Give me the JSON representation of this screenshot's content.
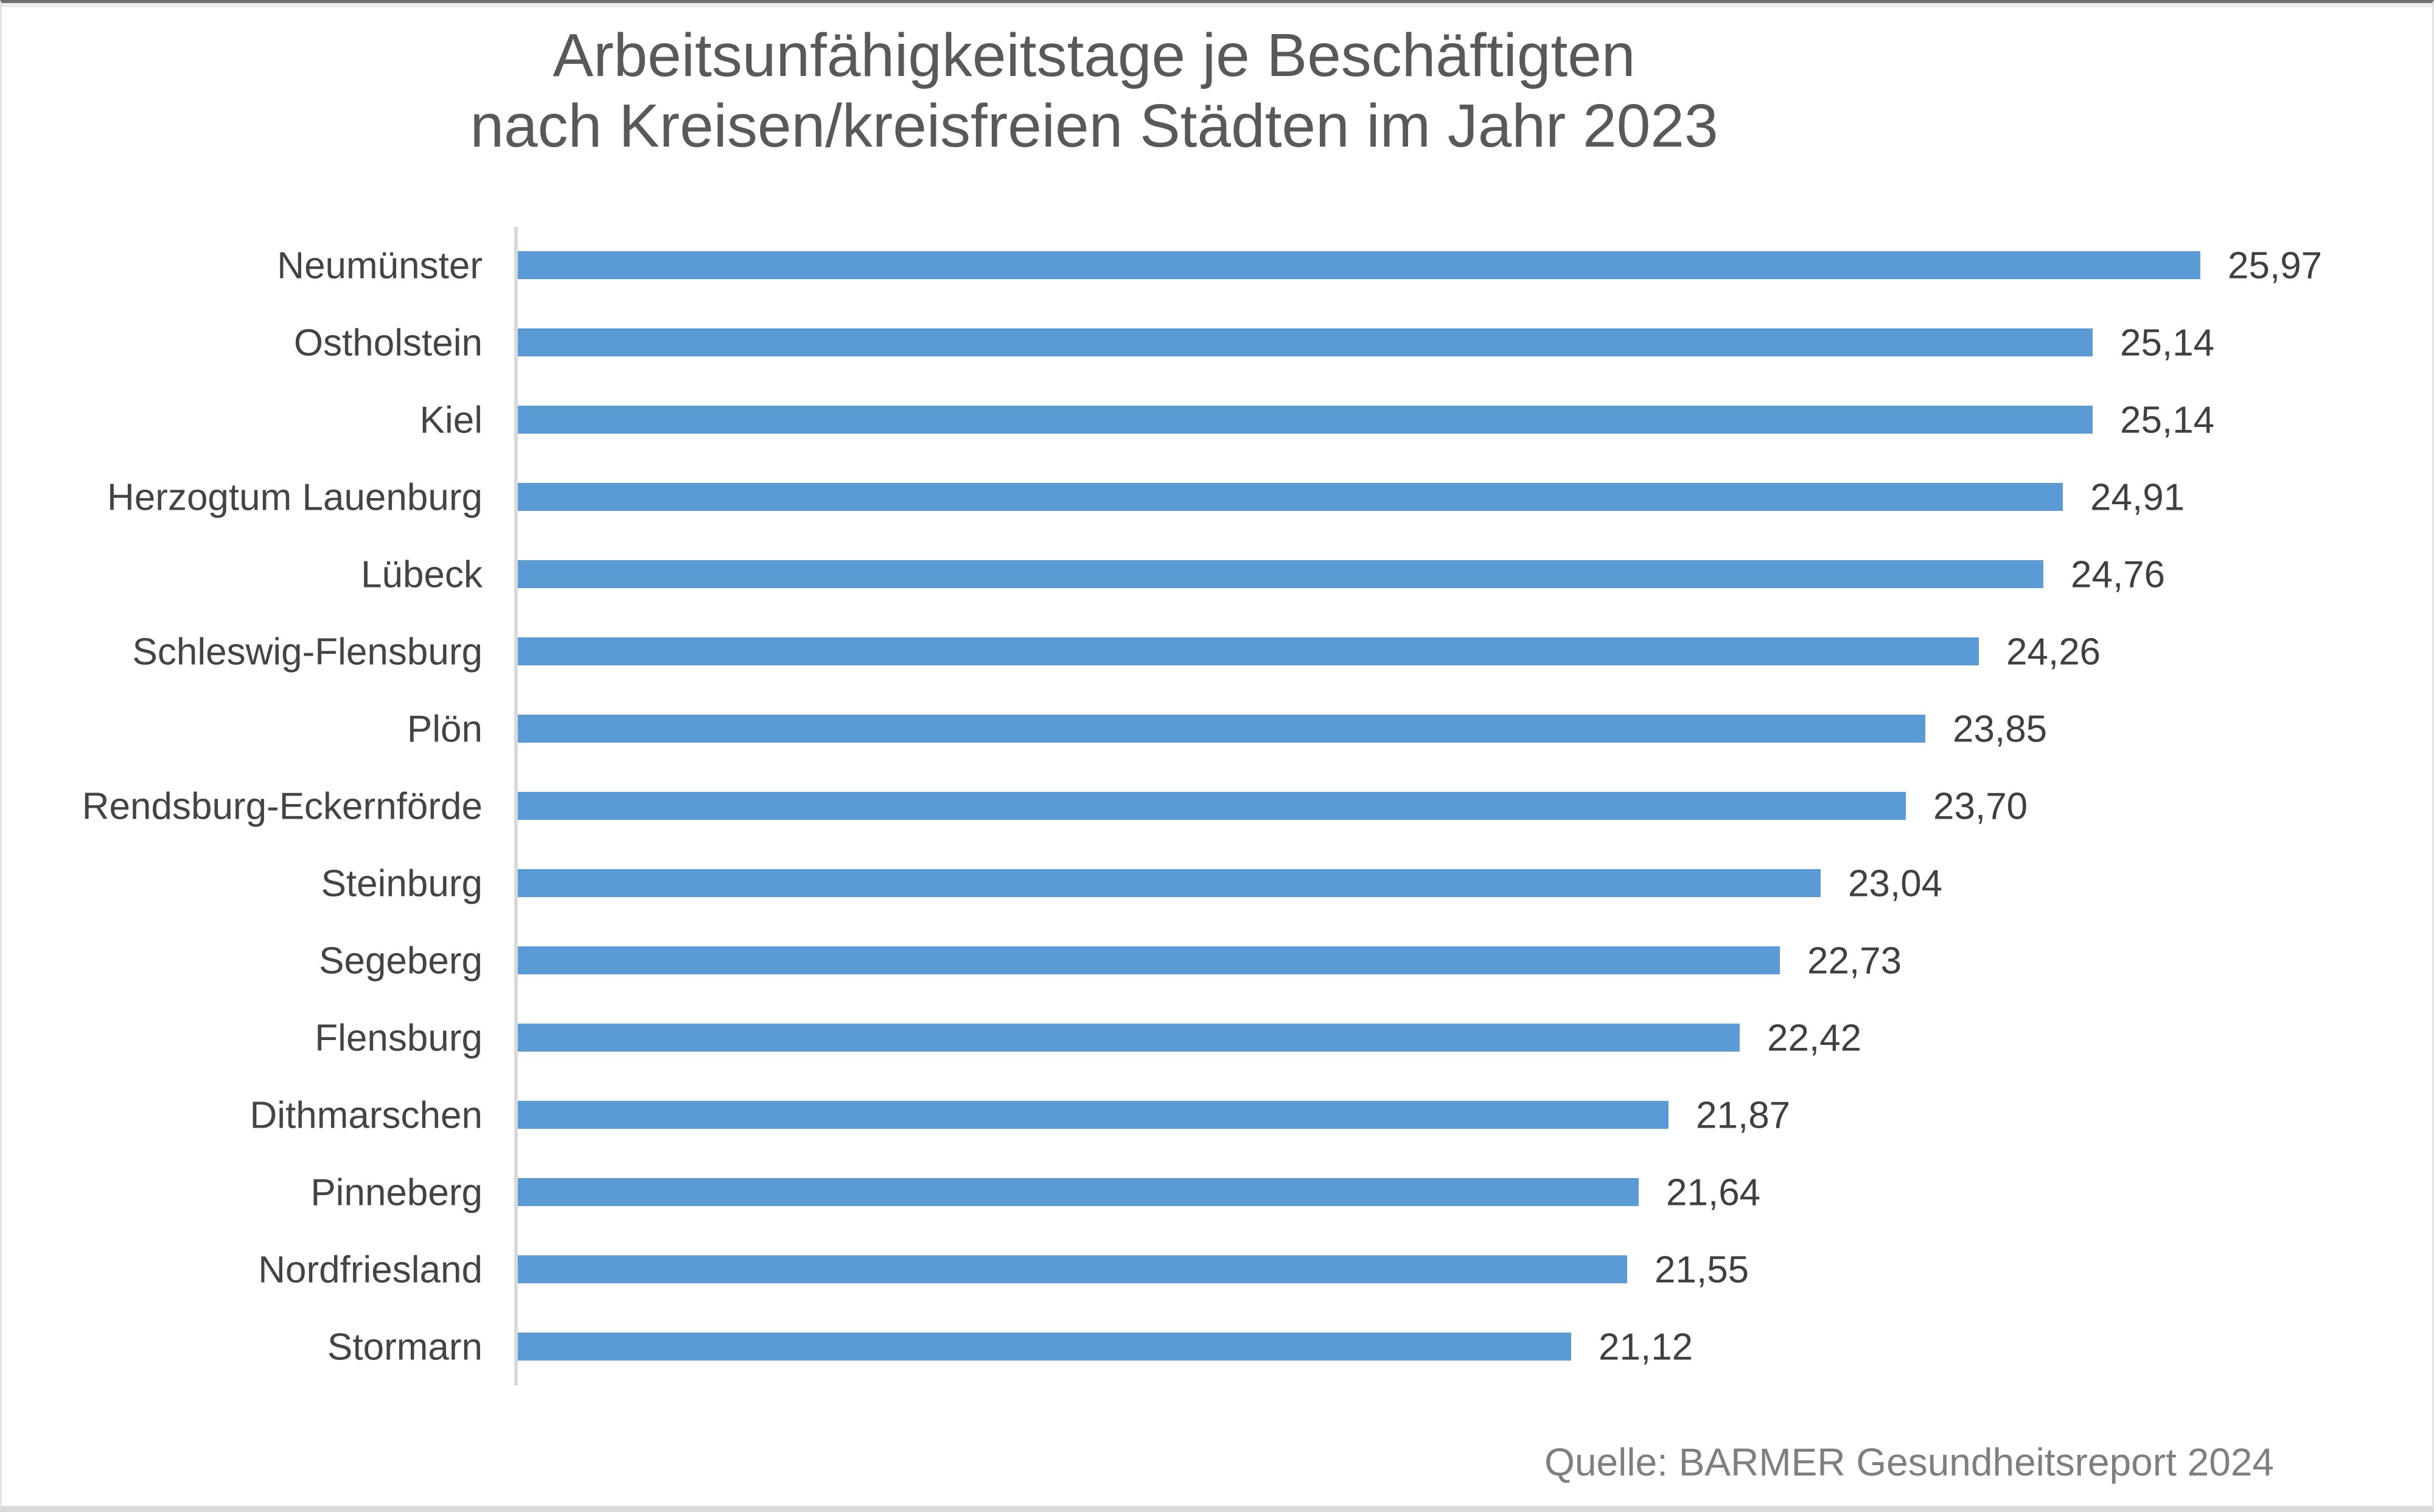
{
  "chart_data": {
    "type": "bar",
    "orientation": "horizontal",
    "title_line1": "Arbeitsunfähigkeitstage je Beschäftigten",
    "title_line2": "nach Kreisen/kreisfreien Städten im Jahr 2023",
    "categories": [
      "Neumünster",
      "Ostholstein",
      "Kiel",
      "Herzogtum Lauenburg",
      "Lübeck",
      "Schleswig-Flensburg",
      "Plön",
      "Rendsburg-Eckernförde",
      "Steinburg",
      "Segeberg",
      "Flensburg",
      "Dithmarschen",
      "Pinneberg",
      "Nordfriesland",
      "Stormarn"
    ],
    "values": [
      25.97,
      25.14,
      25.14,
      24.91,
      24.76,
      24.26,
      23.85,
      23.7,
      23.04,
      22.73,
      22.42,
      21.87,
      21.64,
      21.55,
      21.12
    ],
    "value_labels": [
      "25,97",
      "25,14",
      "25,14",
      "24,91",
      "24,76",
      "24,26",
      "23,85",
      "23,70",
      "23,04",
      "22,73",
      "22,42",
      "21,87",
      "21,64",
      "21,55",
      "21,12"
    ],
    "xlabel": "",
    "ylabel": "",
    "axis_min_estimated": 13,
    "axis_max_estimated": 26.5,
    "grid": false,
    "legend": "none",
    "data_labels": "outside-end",
    "bar_color": "#5b9bd5",
    "axis_line_color": "#d9d9d9",
    "source": "Quelle: BARMER Gesundheitsreport 2024"
  }
}
